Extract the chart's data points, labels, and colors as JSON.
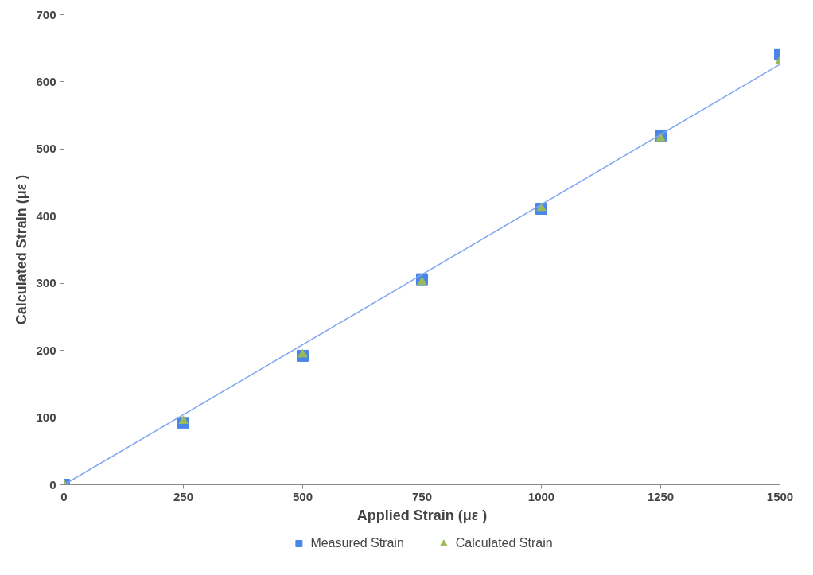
{
  "chart_data": {
    "type": "scatter",
    "xlabel": "Applied Strain (με )",
    "ylabel": "Calculated Strain (με )",
    "x": [
      0,
      250,
      500,
      750,
      1000,
      1250,
      1500
    ],
    "series": [
      {
        "name": "Measured Strain",
        "color": "#4a86e8",
        "marker": "square",
        "values": [
          0,
          92,
          192,
          306,
          411,
          520,
          641
        ]
      },
      {
        "name": "Calculated Strain",
        "color": "#9bbb59",
        "marker": "triangle",
        "values": [
          0,
          95,
          194,
          302,
          412,
          516,
          631
        ]
      },
      {
        "type": "line",
        "color": "#7ea6f0",
        "x": [
          0,
          1500
        ],
        "values": [
          0,
          626
        ]
      }
    ],
    "xlim": [
      0,
      1500
    ],
    "ylim": [
      0,
      700
    ],
    "xticks": [
      0,
      250,
      500,
      750,
      1000,
      1250,
      1500
    ],
    "yticks": [
      0,
      100,
      200,
      300,
      400,
      500,
      600,
      700
    ],
    "grid": false,
    "legend": "bottom"
  }
}
